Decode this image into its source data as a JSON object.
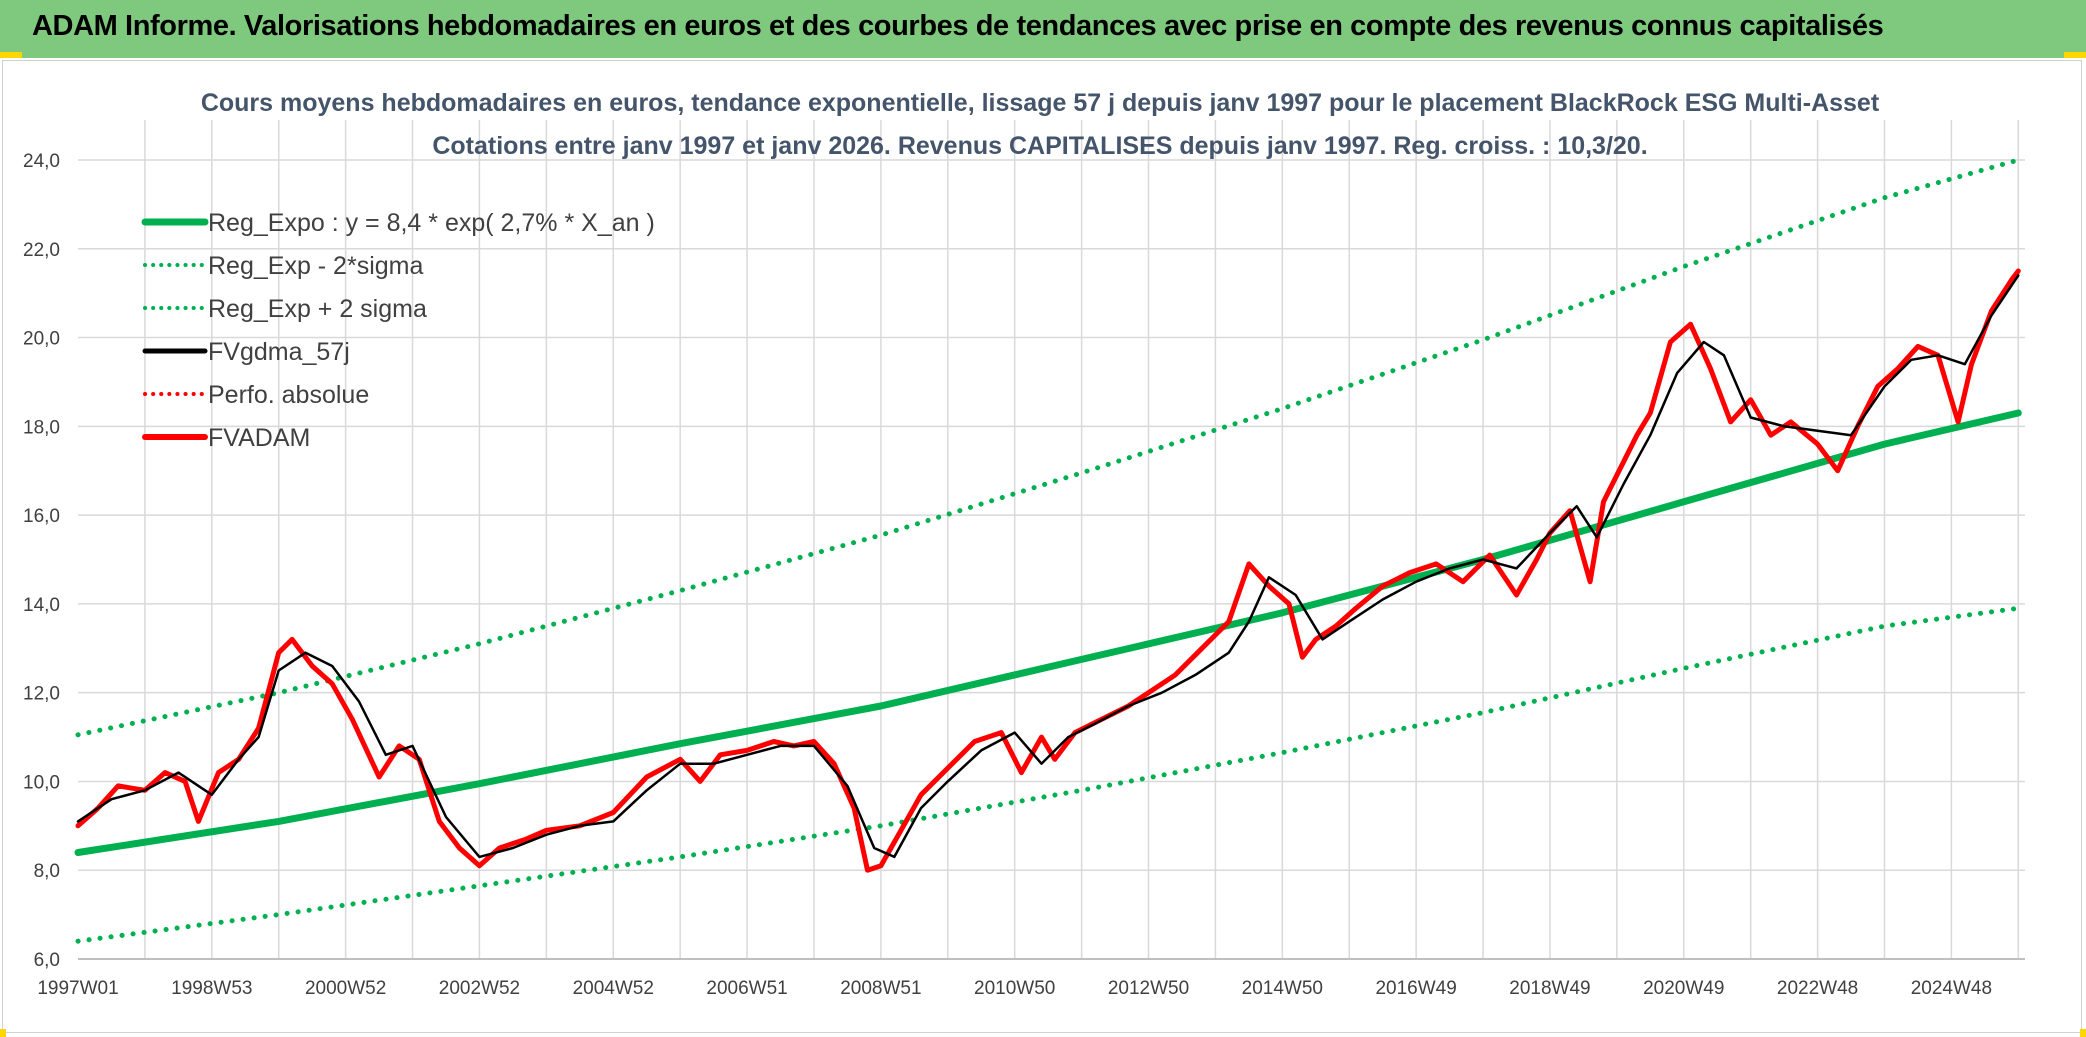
{
  "header": {
    "title": "ADAM Informe. Valorisations hebdomadaires en euros et des courbes de tendances avec prise en compte des revenus connus capitalisés"
  },
  "chart_data": {
    "type": "line",
    "title": "Cours moyens hebdomadaires en euros, tendance exponentielle, lissage 57 j depuis janv 1997 pour le placement BlackRock ESG Multi-Asset",
    "subtitle": "Cotations entre janv 1997 et janv 2026. Revenus CAPITALISES depuis janv 1997. Reg. croiss. : 10,3/20.",
    "xlabel": "",
    "ylabel": "",
    "xlim": [
      1997.0,
      2026.1
    ],
    "ylim": [
      6.0,
      24.0
    ],
    "y_ticks": [
      "6,0",
      "8,0",
      "10,0",
      "12,0",
      "14,0",
      "16,0",
      "18,0",
      "20,0",
      "22,0",
      "24,0"
    ],
    "x_ticks": [
      "1997W01",
      "1998W53",
      "2000W52",
      "2002W52",
      "2004W52",
      "2006W51",
      "2008W51",
      "2010W50",
      "2012W50",
      "2014W50",
      "2016W49",
      "2018W49",
      "2020W49",
      "2022W48",
      "2024W48"
    ],
    "legend_position": "top-left",
    "grid": true,
    "colors": {
      "reg_expo": "#00b050",
      "sigma": "#00b050",
      "gdma": "#000000",
      "perfo": "#ff0000",
      "adam": "#ff0000",
      "gridline": "#d9d9d9"
    },
    "series": [
      {
        "name": "Reg_Expo : y = 8,4 * exp( 2,7% *  X_an )",
        "style": "solid-thick",
        "color": "#00b050",
        "x": [
          1997,
          2000,
          2003,
          2006,
          2009,
          2012,
          2015,
          2018,
          2021,
          2024,
          2026
        ],
        "values": [
          8.4,
          9.1,
          9.95,
          10.85,
          11.7,
          12.75,
          13.8,
          15.0,
          16.3,
          17.6,
          18.3
        ]
      },
      {
        "name": "Reg_Exp - 2*sigma",
        "style": "dotted",
        "color": "#00b050",
        "x": [
          1997,
          2000,
          2003,
          2006,
          2009,
          2012,
          2015,
          2018,
          2021,
          2024,
          2026
        ],
        "values": [
          6.4,
          7.0,
          7.65,
          8.3,
          9.0,
          9.8,
          10.65,
          11.55,
          12.55,
          13.5,
          13.9
        ]
      },
      {
        "name": "Reg_Exp + 2 sigma",
        "style": "dotted",
        "color": "#00b050",
        "x": [
          1997,
          2000,
          2003,
          2006,
          2009,
          2012,
          2015,
          2018,
          2021,
          2024,
          2026
        ],
        "values": [
          11.05,
          12.0,
          13.1,
          14.3,
          15.55,
          16.95,
          18.4,
          19.95,
          21.6,
          23.15,
          24.0
        ]
      },
      {
        "name": "FVgdma_57j",
        "style": "solid-thin",
        "color": "#000000",
        "x": [
          1997.0,
          1997.5,
          1998.0,
          1998.5,
          1999.0,
          1999.4,
          1999.7,
          2000.0,
          2000.4,
          2000.8,
          2001.2,
          2001.6,
          2002.0,
          2002.5,
          2003.0,
          2003.5,
          2004.0,
          2004.5,
          2005.0,
          2005.5,
          2006.0,
          2006.5,
          2007.0,
          2007.5,
          2008.0,
          2008.5,
          2008.9,
          2009.2,
          2009.6,
          2010.0,
          2010.5,
          2011.0,
          2011.4,
          2011.8,
          2012.2,
          2012.7,
          2013.2,
          2013.7,
          2014.2,
          2014.5,
          2014.8,
          2015.2,
          2015.6,
          2016.0,
          2016.5,
          2017.0,
          2017.5,
          2018.0,
          2018.5,
          2019.0,
          2019.4,
          2019.7,
          2020.1,
          2020.5,
          2020.9,
          2021.3,
          2021.6,
          2022.0,
          2022.5,
          2023.0,
          2023.5,
          2024.0,
          2024.4,
          2024.8,
          2025.2,
          2025.6,
          2026.0
        ],
        "values": [
          9.1,
          9.6,
          9.8,
          10.2,
          9.7,
          10.5,
          11.0,
          12.5,
          12.9,
          12.6,
          11.8,
          10.6,
          10.8,
          9.2,
          8.3,
          8.5,
          8.8,
          9.0,
          9.1,
          9.8,
          10.4,
          10.4,
          10.6,
          10.8,
          10.8,
          9.9,
          8.5,
          8.3,
          9.4,
          10.0,
          10.7,
          11.1,
          10.4,
          11.0,
          11.3,
          11.7,
          12.0,
          12.4,
          12.9,
          13.6,
          14.6,
          14.2,
          13.2,
          13.6,
          14.1,
          14.5,
          14.8,
          15.0,
          14.8,
          15.6,
          16.2,
          15.5,
          16.7,
          17.8,
          19.2,
          19.9,
          19.6,
          18.2,
          18.0,
          17.9,
          17.8,
          18.9,
          19.5,
          19.6,
          19.4,
          20.5,
          21.4
        ]
      },
      {
        "name": "Perfo. absolue",
        "style": "dotted",
        "color": "#ff0000",
        "x": [],
        "values": []
      },
      {
        "name": "FVADAM",
        "style": "solid-thick",
        "color": "#ff0000",
        "x": [
          1997.0,
          1997.3,
          1997.6,
          1998.0,
          1998.3,
          1998.6,
          1998.8,
          1999.1,
          1999.4,
          1999.7,
          2000.0,
          2000.2,
          2000.5,
          2000.8,
          2001.1,
          2001.5,
          2001.8,
          2002.1,
          2002.4,
          2002.7,
          2003.0,
          2003.3,
          2003.7,
          2004.0,
          2004.5,
          2005.0,
          2005.5,
          2006.0,
          2006.3,
          2006.6,
          2007.0,
          2007.4,
          2007.7,
          2008.0,
          2008.3,
          2008.6,
          2008.8,
          2009.0,
          2009.3,
          2009.6,
          2010.0,
          2010.4,
          2010.8,
          2011.1,
          2011.4,
          2011.6,
          2011.9,
          2012.3,
          2012.7,
          2013.0,
          2013.4,
          2013.8,
          2014.2,
          2014.5,
          2014.8,
          2015.1,
          2015.3,
          2015.5,
          2015.8,
          2016.1,
          2016.5,
          2016.9,
          2017.3,
          2017.7,
          2018.1,
          2018.5,
          2018.8,
          2019.0,
          2019.3,
          2019.6,
          2019.8,
          2020.1,
          2020.3,
          2020.5,
          2020.8,
          2021.1,
          2021.4,
          2021.7,
          2022.0,
          2022.3,
          2022.6,
          2023.0,
          2023.3,
          2023.6,
          2023.9,
          2024.2,
          2024.5,
          2024.8,
          2025.1,
          2025.3,
          2025.6,
          2025.9,
          2026.0
        ],
        "values": [
          9.0,
          9.4,
          9.9,
          9.8,
          10.2,
          10.0,
          9.1,
          10.2,
          10.5,
          11.2,
          12.9,
          13.2,
          12.6,
          12.2,
          11.4,
          10.1,
          10.8,
          10.5,
          9.1,
          8.5,
          8.1,
          8.5,
          8.7,
          8.9,
          9.0,
          9.3,
          10.1,
          10.5,
          10.0,
          10.6,
          10.7,
          10.9,
          10.8,
          10.9,
          10.4,
          9.4,
          8.0,
          8.1,
          8.9,
          9.7,
          10.3,
          10.9,
          11.1,
          10.2,
          11.0,
          10.5,
          11.1,
          11.4,
          11.7,
          12.0,
          12.4,
          13.0,
          13.6,
          14.9,
          14.4,
          14.0,
          12.8,
          13.2,
          13.5,
          13.9,
          14.4,
          14.7,
          14.9,
          14.5,
          15.1,
          14.2,
          15.0,
          15.6,
          16.1,
          14.5,
          16.3,
          17.2,
          17.8,
          18.3,
          19.9,
          20.3,
          19.3,
          18.1,
          18.6,
          17.8,
          18.1,
          17.6,
          17.0,
          18.0,
          18.9,
          19.3,
          19.8,
          19.6,
          18.1,
          19.4,
          20.6,
          21.3,
          21.5
        ]
      }
    ]
  }
}
